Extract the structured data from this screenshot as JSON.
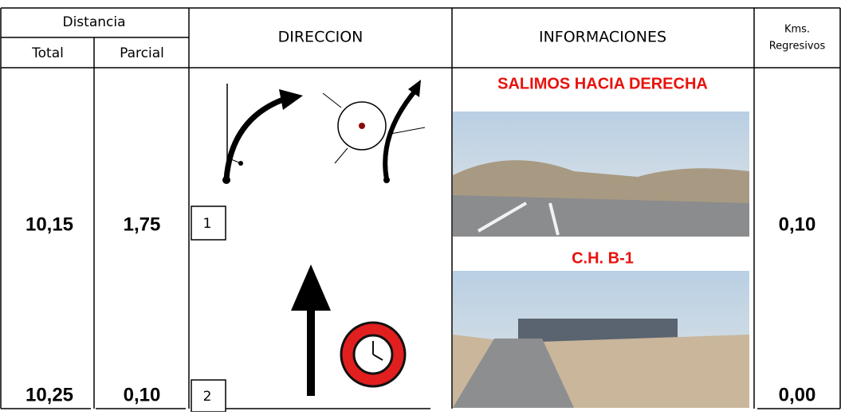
{
  "header": {
    "distancia": "Distancia",
    "total": "Total",
    "parcial": "Parcial",
    "direccion": "DIRECCION",
    "informaciones": "INFORMACIONES",
    "kms": [
      "Kms.",
      "Regresivos"
    ]
  },
  "rows": [
    {
      "total": "10,15",
      "parcial": "1,75",
      "number": "1",
      "info": "SALIMOS HACIA DERECHA",
      "kms": "0,10"
    },
    {
      "total": "10,25",
      "parcial": "0,10",
      "number": "2",
      "info": "C.H. B-1",
      "kms": "0,00"
    }
  ]
}
